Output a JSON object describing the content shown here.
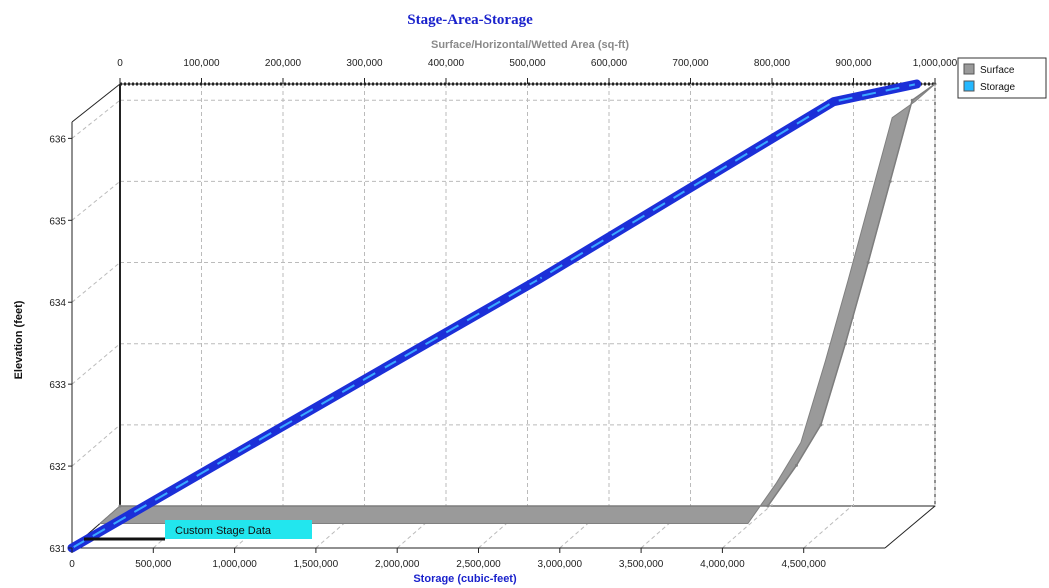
{
  "chart_data": {
    "type": "line",
    "title": "Stage-Area-Storage",
    "top_axis": {
      "label": "Surface/Horizontal/Wetted Area (sq-ft)",
      "ticks": [
        0,
        100000,
        200000,
        300000,
        400000,
        500000,
        600000,
        700000,
        800000,
        900000,
        1000000
      ],
      "tick_labels": [
        "0",
        "100,000",
        "200,000",
        "300,000",
        "400,000",
        "500,000",
        "600,000",
        "700,000",
        "800,000",
        "900,000",
        "1,000,000"
      ],
      "range": [
        0,
        1000000
      ]
    },
    "bottom_axis": {
      "label": "Storage (cubic-feet)",
      "ticks": [
        0,
        500000,
        1000000,
        1500000,
        2000000,
        2500000,
        3000000,
        3500000,
        4000000,
        4500000
      ],
      "tick_labels": [
        "0",
        "500,000",
        "1,000,000",
        "1,500,000",
        "2,000,000",
        "2,500,000",
        "3,000,000",
        "3,500,000",
        "4,000,000",
        "4,500,000"
      ],
      "range": [
        0,
        5000000
      ]
    },
    "y_axis": {
      "label": "Elevation  (feet)",
      "ticks": [
        631,
        632,
        633,
        634,
        635,
        636
      ],
      "tick_labels": [
        "631",
        "632",
        "633",
        "634",
        "635",
        "636"
      ],
      "range": [
        631,
        636.2
      ]
    },
    "grid": true,
    "legend_position": "top-right",
    "series": [
      {
        "name": "Surface",
        "axis": "top",
        "color": "#9a9a9a",
        "points": [
          {
            "x": 0,
            "y": 631
          },
          {
            "x": 795000,
            "y": 631
          },
          {
            "x": 830000,
            "y": 631.5
          },
          {
            "x": 860000,
            "y": 632
          },
          {
            "x": 890000,
            "y": 633
          },
          {
            "x": 918000,
            "y": 634
          },
          {
            "x": 945000,
            "y": 635
          },
          {
            "x": 972000,
            "y": 636
          },
          {
            "x": 1000000,
            "y": 636.2
          }
        ]
      },
      {
        "name": "Storage",
        "axis": "bottom",
        "color": "#1f3fe0",
        "points": [
          {
            "x": 0,
            "y": 631
          },
          {
            "x": 900000,
            "y": 632
          },
          {
            "x": 1800000,
            "y": 633
          },
          {
            "x": 2700000,
            "y": 634
          },
          {
            "x": 3550000,
            "y": 635
          },
          {
            "x": 4400000,
            "y": 636
          },
          {
            "x": 4900000,
            "y": 636.2
          }
        ]
      }
    ],
    "annotations": [
      {
        "text": "Custom Stage Data"
      }
    ]
  }
}
